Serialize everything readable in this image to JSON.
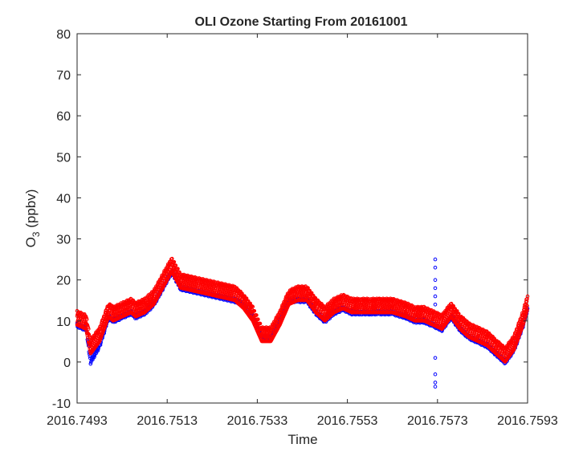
{
  "chart_data": {
    "type": "scatter",
    "title": "OLI Ozone Starting From 20161001",
    "xlabel": "Time",
    "ylabel": "O",
    "ylabel_subscript": "3",
    "ylabel_suffix": " (ppbv)",
    "xlim": [
      2016.7493,
      2016.7593
    ],
    "ylim": [
      -10,
      80
    ],
    "x_ticks": [
      2016.7493,
      2016.7513,
      2016.7533,
      2016.7553,
      2016.7573,
      2016.7593
    ],
    "x_tick_labels": [
      "2016.7493",
      "2016.7513",
      "2016.7533",
      "2016.7553",
      "2016.7573",
      "2016.7593"
    ],
    "y_ticks": [
      -10,
      0,
      10,
      20,
      30,
      40,
      50,
      60,
      70,
      80
    ],
    "y_tick_labels": [
      "-10",
      "0",
      "10",
      "20",
      "30",
      "40",
      "50",
      "60",
      "70",
      "80"
    ],
    "grid": false,
    "series": [
      {
        "color": "#ff0000",
        "marker": "circle-open",
        "x": [
          2016.7493,
          2016.7495,
          2016.7496,
          2016.7498,
          2016.75,
          2016.7501,
          2016.7503,
          2016.7505,
          2016.7506,
          2016.7508,
          2016.751,
          2016.7512,
          2016.7514,
          2016.7516,
          2016.752,
          2016.7524,
          2016.7528,
          2016.753,
          2016.7532,
          2016.7534,
          2016.7536,
          2016.7538,
          2016.754,
          2016.7542,
          2016.7544,
          2016.7546,
          2016.7548,
          2016.755,
          2016.7552,
          2016.7554,
          2016.7556,
          2016.7558,
          2016.756,
          2016.7563,
          2016.7566,
          2016.7568,
          2016.757,
          2016.7572,
          2016.7574,
          2016.7576,
          2016.7578,
          2016.758,
          2016.7582,
          2016.7584,
          2016.7586,
          2016.7588,
          2016.759,
          2016.7592,
          2016.7593
        ],
        "y": [
          12,
          11,
          5,
          8,
          14,
          13,
          14,
          15,
          14,
          15,
          17,
          21,
          25,
          21,
          20,
          19,
          18,
          16,
          13,
          8,
          8,
          12,
          17,
          18,
          18,
          15,
          13,
          15,
          16,
          15,
          15,
          15,
          15,
          15,
          14,
          13,
          13,
          12,
          11,
          14,
          11,
          9,
          8,
          7,
          5,
          3,
          6,
          12,
          16
        ]
      },
      {
        "color": "#0000ff",
        "marker": "circle-open",
        "x": [
          2016.7493,
          2016.7495,
          2016.7496,
          2016.7498,
          2016.75,
          2016.7501,
          2016.7503,
          2016.7505,
          2016.7506,
          2016.7508,
          2016.751,
          2016.7512,
          2016.7514,
          2016.7516,
          2016.752,
          2016.7524,
          2016.7528,
          2016.753,
          2016.7532,
          2016.7534,
          2016.7536,
          2016.7538,
          2016.754,
          2016.7542,
          2016.7544,
          2016.7546,
          2016.7548,
          2016.755,
          2016.7552,
          2016.7554,
          2016.7556,
          2016.7558,
          2016.756,
          2016.7563,
          2016.7566,
          2016.7568,
          2016.757,
          2016.7572,
          2016.7574,
          2016.7576,
          2016.7578,
          2016.758,
          2016.7582,
          2016.7584,
          2016.7586,
          2016.7588,
          2016.759,
          2016.7592,
          2016.7593
        ],
        "y": [
          9,
          8,
          0,
          4,
          11,
          10,
          11,
          12,
          11,
          12,
          14,
          18,
          22,
          18,
          17,
          16,
          15,
          14,
          11,
          6,
          6,
          10,
          15,
          15,
          15,
          12,
          10,
          12,
          13,
          12,
          12,
          12,
          12,
          12,
          11,
          10,
          10,
          9,
          8,
          11,
          8,
          6,
          5,
          4,
          2,
          0,
          3,
          9,
          13
        ]
      },
      {
        "color": "#0000ff",
        "marker": "circle-open",
        "x": [
          2016.75725,
          2016.75725,
          2016.75725,
          2016.75725,
          2016.75725,
          2016.75725,
          2016.75725,
          2016.75725,
          2016.75725,
          2016.75725
        ],
        "y": [
          25,
          23,
          20,
          18,
          16,
          14,
          1,
          -3,
          -5,
          -6
        ]
      }
    ]
  }
}
